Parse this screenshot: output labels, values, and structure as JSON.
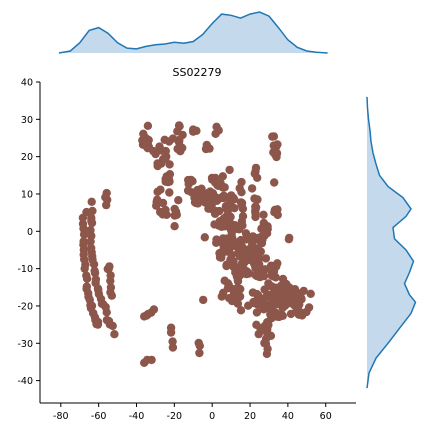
{
  "chart_data": {
    "type": "scatter",
    "title": "SS02279",
    "xlabel": "",
    "ylabel": "",
    "xlim": [
      -91,
      76
    ],
    "ylim": [
      -46,
      40
    ],
    "xticks": [
      -80,
      -60,
      -40,
      -20,
      0,
      20,
      40,
      60
    ],
    "yticks": [
      -40,
      -30,
      -20,
      -10,
      0,
      10,
      20,
      30,
      40
    ],
    "grid": false,
    "legend": "none",
    "point_color": "#8c564b",
    "marginal_fill": "#c5d9ec",
    "marginal_line": "#1f77b4",
    "marginal_x_density": [
      [
        -81,
        0.0
      ],
      [
        -75,
        0.05
      ],
      [
        -70,
        0.25
      ],
      [
        -65,
        0.55
      ],
      [
        -60,
        0.62
      ],
      [
        -55,
        0.48
      ],
      [
        -50,
        0.25
      ],
      [
        -45,
        0.12
      ],
      [
        -40,
        0.1
      ],
      [
        -35,
        0.16
      ],
      [
        -30,
        0.2
      ],
      [
        -25,
        0.22
      ],
      [
        -20,
        0.26
      ],
      [
        -15,
        0.24
      ],
      [
        -10,
        0.28
      ],
      [
        -5,
        0.45
      ],
      [
        0,
        0.72
      ],
      [
        5,
        0.95
      ],
      [
        10,
        0.92
      ],
      [
        15,
        0.85
      ],
      [
        20,
        0.95
      ],
      [
        25,
        1.0
      ],
      [
        30,
        0.9
      ],
      [
        35,
        0.62
      ],
      [
        40,
        0.32
      ],
      [
        45,
        0.14
      ],
      [
        50,
        0.05
      ],
      [
        55,
        0.02
      ],
      [
        61,
        0.0
      ]
    ],
    "marginal_y_density": [
      [
        -42,
        0.0
      ],
      [
        -38,
        0.04
      ],
      [
        -34,
        0.18
      ],
      [
        -30,
        0.42
      ],
      [
        -26,
        0.65
      ],
      [
        -22,
        0.88
      ],
      [
        -19,
        0.97
      ],
      [
        -17,
        0.85
      ],
      [
        -14,
        0.75
      ],
      [
        -11,
        0.85
      ],
      [
        -8,
        0.93
      ],
      [
        -5,
        0.78
      ],
      [
        -2,
        0.55
      ],
      [
        1,
        0.52
      ],
      [
        4,
        0.78
      ],
      [
        6,
        0.88
      ],
      [
        9,
        0.72
      ],
      [
        12,
        0.42
      ],
      [
        15,
        0.25
      ],
      [
        18,
        0.18
      ],
      [
        21,
        0.12
      ],
      [
        24,
        0.08
      ],
      [
        27,
        0.06
      ],
      [
        30,
        0.03
      ],
      [
        33,
        0.01
      ],
      [
        36,
        0.0
      ]
    ],
    "clusters": [
      {
        "type": "path",
        "points": [
          [
            -68,
            5
          ],
          [
            -68,
            -5
          ],
          [
            -66,
            -15
          ],
          [
            -63,
            -22
          ],
          [
            -60,
            -26
          ]
        ],
        "n": 30
      },
      {
        "type": "path",
        "points": [
          [
            -64,
            7
          ],
          [
            -64,
            -3
          ],
          [
            -62,
            -12
          ],
          [
            -58,
            -20
          ],
          [
            -52,
            -27
          ]
        ],
        "n": 30
      },
      {
        "type": "path",
        "points": [
          [
            -55,
            -9
          ],
          [
            -53,
            -17
          ]
        ],
        "n": 8
      },
      {
        "type": "path",
        "points": [
          [
            -56,
            10
          ],
          [
            -56,
            7
          ]
        ],
        "n": 4
      },
      {
        "type": "path",
        "points": [
          [
            -36,
            -23
          ],
          [
            -31,
            -21
          ]
        ],
        "n": 5
      },
      {
        "type": "path",
        "points": [
          [
            -36,
            -35
          ],
          [
            -33,
            -35
          ]
        ],
        "n": 3
      },
      {
        "type": "path",
        "points": [
          [
            -22,
            -26
          ],
          [
            -21,
            -31
          ]
        ],
        "n": 4
      },
      {
        "type": "path",
        "points": [
          [
            -7,
            -30
          ],
          [
            -6,
            -32
          ]
        ],
        "n": 3
      },
      {
        "type": "blob",
        "cx": -35,
        "cy": 24,
        "rx": 4,
        "ry": 4,
        "n": 16
      },
      {
        "type": "blob",
        "cx": -27,
        "cy": 20,
        "rx": 4,
        "ry": 4,
        "n": 12
      },
      {
        "type": "blob",
        "cx": -23,
        "cy": 14,
        "rx": 3,
        "ry": 4,
        "n": 10
      },
      {
        "type": "blob",
        "cx": -28,
        "cy": 9,
        "rx": 2,
        "ry": 3,
        "n": 6
      },
      {
        "type": "blob",
        "cx": -26,
        "cy": 5,
        "rx": 3,
        "ry": 2,
        "n": 5
      },
      {
        "type": "blob",
        "cx": -19,
        "cy": 5,
        "rx": 2,
        "ry": 4,
        "n": 6
      },
      {
        "type": "blob",
        "cx": -17,
        "cy": 24,
        "rx": 3,
        "ry": 4,
        "n": 8
      },
      {
        "type": "blob",
        "cx": -17,
        "cy": 29,
        "rx": 1,
        "ry": 1,
        "n": 2
      },
      {
        "type": "blob",
        "cx": -9,
        "cy": 27,
        "rx": 2,
        "ry": 1,
        "n": 3
      },
      {
        "type": "blob",
        "cx": -3,
        "cy": 22,
        "rx": 2,
        "ry": 2,
        "n": 3
      },
      {
        "type": "blob",
        "cx": 2,
        "cy": 27,
        "rx": 2,
        "ry": 1,
        "n": 3
      },
      {
        "type": "blob",
        "cx": -11,
        "cy": 13,
        "rx": 2,
        "ry": 2,
        "n": 4
      },
      {
        "type": "blob",
        "cx": -5,
        "cy": 9,
        "rx": 7,
        "ry": 3,
        "n": 22
      },
      {
        "type": "blob",
        "cx": 8,
        "cy": 8,
        "rx": 8,
        "ry": 5,
        "n": 40
      },
      {
        "type": "blob",
        "cx": 1,
        "cy": 13,
        "rx": 3,
        "ry": 3,
        "n": 8
      },
      {
        "type": "blob",
        "cx": 7,
        "cy": -5,
        "rx": 5,
        "ry": 10,
        "n": 45
      },
      {
        "type": "blob",
        "cx": 15,
        "cy": -7,
        "rx": 5,
        "ry": 7,
        "n": 40
      },
      {
        "type": "blob",
        "cx": 24,
        "cy": -8,
        "rx": 6,
        "ry": 6,
        "n": 40
      },
      {
        "type": "blob",
        "cx": 27,
        "cy": 0,
        "rx": 3,
        "ry": 4,
        "n": 14
      },
      {
        "type": "blob",
        "cx": 23,
        "cy": 8,
        "rx": 2,
        "ry": 4,
        "n": 10
      },
      {
        "type": "blob",
        "cx": 23,
        "cy": 15,
        "rx": 2,
        "ry": 2,
        "n": 4
      },
      {
        "type": "blob",
        "cx": 33,
        "cy": 22,
        "rx": 2,
        "ry": 4,
        "n": 10
      },
      {
        "type": "blob",
        "cx": 34,
        "cy": 5,
        "rx": 2,
        "ry": 2,
        "n": 5
      },
      {
        "type": "blob",
        "cx": 41,
        "cy": -2,
        "rx": 1,
        "ry": 1,
        "n": 2
      },
      {
        "type": "blob",
        "cx": 32,
        "cy": -11,
        "rx": 4,
        "ry": 3,
        "n": 10
      },
      {
        "type": "blob",
        "cx": 37,
        "cy": -17,
        "rx": 6,
        "ry": 5,
        "n": 28
      },
      {
        "type": "blob",
        "cx": 31,
        "cy": -21,
        "rx": 5,
        "ry": 4,
        "n": 20
      },
      {
        "type": "blob",
        "cx": 46,
        "cy": -20,
        "rx": 6,
        "ry": 5,
        "n": 24
      },
      {
        "type": "blob",
        "cx": 22,
        "cy": -19,
        "rx": 4,
        "ry": 3,
        "n": 12
      },
      {
        "type": "blob",
        "cx": 13,
        "cy": -18,
        "rx": 3,
        "ry": 4,
        "n": 10
      },
      {
        "type": "blob",
        "cx": 8,
        "cy": -15,
        "rx": 2,
        "ry": 1,
        "n": 3
      },
      {
        "type": "blob",
        "cx": 27,
        "cy": -26,
        "rx": 5,
        "ry": 3,
        "n": 12
      },
      {
        "type": "path",
        "points": [
          [
            29,
            -27
          ],
          [
            29,
            -33
          ]
        ],
        "n": 5
      },
      {
        "type": "path",
        "points": [
          [
            15,
            13
          ],
          [
            16,
            4
          ]
        ],
        "n": 5
      }
    ]
  }
}
